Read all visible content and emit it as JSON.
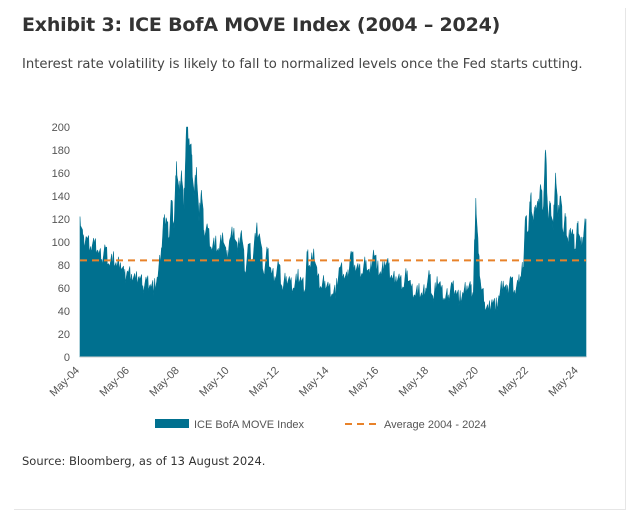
{
  "header": {
    "title": "Exhibit 3: ICE BofA MOVE Index (2004 – 2024)",
    "subtitle": "Interest rate volatility is likely to fall to normalized levels once the Fed starts cutting."
  },
  "footer": {
    "source": "Source: Bloomberg, as of 13 August 2024."
  },
  "colors": {
    "area": "#00708f",
    "average": "#e8822a"
  },
  "chart_data": {
    "type": "area",
    "title": "Exhibit 3: ICE BofA MOVE Index (2004 – 2024)",
    "xlabel": "",
    "ylabel": "",
    "ylim": [
      0,
      200
    ],
    "yticks": [
      0,
      20,
      40,
      60,
      80,
      100,
      120,
      140,
      160,
      180,
      200
    ],
    "xlim": [
      2004.33,
      2024.62
    ],
    "xticks": [
      {
        "x": 2004.33,
        "label": "May-04"
      },
      {
        "x": 2006.33,
        "label": "May-06"
      },
      {
        "x": 2008.33,
        "label": "May-08"
      },
      {
        "x": 2010.33,
        "label": "May-10"
      },
      {
        "x": 2012.33,
        "label": "May-12"
      },
      {
        "x": 2014.33,
        "label": "May-14"
      },
      {
        "x": 2016.33,
        "label": "May-16"
      },
      {
        "x": 2018.33,
        "label": "May-18"
      },
      {
        "x": 2020.33,
        "label": "May-20"
      },
      {
        "x": 2022.33,
        "label": "May-22"
      },
      {
        "x": 2024.33,
        "label": "May-24"
      }
    ],
    "legend_position": "bottom",
    "series": [
      {
        "name": "ICE BofA MOVE Index",
        "type": "area",
        "x": [
          2004.33,
          2004.45,
          2004.6,
          2004.75,
          2004.9,
          2005.05,
          2005.2,
          2005.35,
          2005.5,
          2005.65,
          2005.8,
          2005.95,
          2006.1,
          2006.25,
          2006.4,
          2006.55,
          2006.7,
          2006.85,
          2007.0,
          2007.15,
          2007.3,
          2007.45,
          2007.6,
          2007.7,
          2007.8,
          2007.9,
          2008.0,
          2008.1,
          2008.2,
          2008.3,
          2008.4,
          2008.5,
          2008.6,
          2008.7,
          2008.8,
          2008.9,
          2009.0,
          2009.1,
          2009.2,
          2009.3,
          2009.45,
          2009.6,
          2009.75,
          2009.9,
          2010.05,
          2010.2,
          2010.35,
          2010.5,
          2010.65,
          2010.8,
          2010.95,
          2011.1,
          2011.25,
          2011.4,
          2011.55,
          2011.7,
          2011.85,
          2012.0,
          2012.15,
          2012.3,
          2012.45,
          2012.6,
          2012.75,
          2012.9,
          2013.05,
          2013.2,
          2013.35,
          2013.45,
          2013.55,
          2013.7,
          2013.85,
          2014.0,
          2014.15,
          2014.3,
          2014.45,
          2014.6,
          2014.75,
          2014.9,
          2015.05,
          2015.2,
          2015.35,
          2015.5,
          2015.65,
          2015.8,
          2015.95,
          2016.1,
          2016.25,
          2016.4,
          2016.55,
          2016.7,
          2016.85,
          2017.0,
          2017.15,
          2017.3,
          2017.45,
          2017.6,
          2017.75,
          2017.9,
          2018.05,
          2018.2,
          2018.35,
          2018.5,
          2018.65,
          2018.8,
          2018.95,
          2019.1,
          2019.25,
          2019.4,
          2019.55,
          2019.7,
          2019.85,
          2020.0,
          2020.1,
          2020.2,
          2020.3,
          2020.4,
          2020.55,
          2020.7,
          2020.85,
          2021.0,
          2021.15,
          2021.3,
          2021.45,
          2021.6,
          2021.75,
          2021.9,
          2022.0,
          2022.1,
          2022.2,
          2022.3,
          2022.4,
          2022.5,
          2022.6,
          2022.7,
          2022.8,
          2022.9,
          2023.0,
          2023.1,
          2023.2,
          2023.3,
          2023.4,
          2023.5,
          2023.6,
          2023.7,
          2023.8,
          2023.9,
          2024.0,
          2024.1,
          2024.2,
          2024.3,
          2024.4,
          2024.5,
          2024.62
        ],
        "values": [
          122,
          100,
          104,
          96,
          98,
          92,
          85,
          95,
          80,
          86,
          78,
          82,
          70,
          74,
          72,
          66,
          70,
          62,
          66,
          63,
          60,
          68,
          95,
          118,
          120,
          104,
          136,
          112,
          170,
          140,
          162,
          128,
          200,
          190,
          176,
          140,
          165,
          118,
          145,
          110,
          112,
          94,
          100,
          90,
          108,
          84,
          103,
          112,
          90,
          110,
          74,
          98,
          84,
          111,
          103,
          72,
          92,
          73,
          70,
          80,
          58,
          70,
          65,
          60,
          70,
          66,
          58,
          90,
          76,
          94,
          68,
          60,
          66,
          60,
          55,
          58,
          78,
          72,
          66,
          92,
          80,
          75,
          72,
          84,
          70,
          93,
          78,
          70,
          83,
          78,
          68,
          70,
          66,
          60,
          75,
          60,
          54,
          58,
          52,
          60,
          70,
          48,
          70,
          58,
          50,
          54,
          62,
          58,
          50,
          54,
          62,
          58,
          54,
          138,
          90,
          62,
          48,
          40,
          50,
          43,
          52,
          66,
          54,
          70,
          58,
          62,
          70,
          78,
          122,
          108,
          140,
          115,
          132,
          128,
          150,
          128,
          180,
          118,
          134,
          110,
          160,
          122,
          140,
          108,
          120,
          98,
          112,
          104,
          92,
          118,
          96,
          104,
          120
        ]
      },
      {
        "name": "Average 2004 - 2024",
        "type": "line",
        "dashed": true,
        "values": [
          84
        ]
      }
    ]
  }
}
